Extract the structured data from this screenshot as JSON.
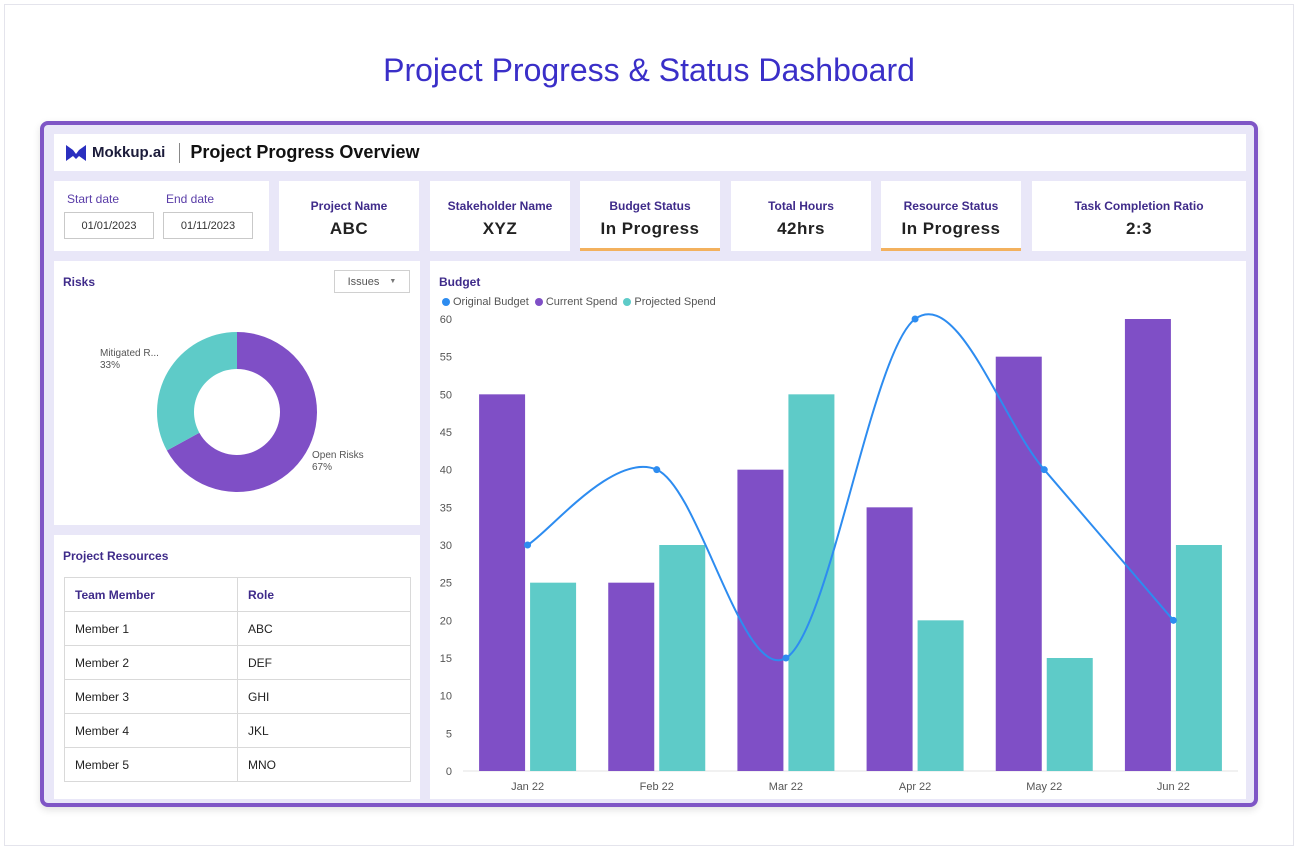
{
  "page": {
    "title": "Project Progress & Status Dashboard"
  },
  "header": {
    "logo_text": "Mokkup.ai",
    "title": "Project Progress Overview",
    "logo_icon": "mokkup-logo-icon"
  },
  "dates": {
    "start": {
      "label": "Start date",
      "value": "01/01/2023"
    },
    "end": {
      "label": "End date",
      "value": "01/11/2023"
    }
  },
  "kpis": [
    {
      "label": "Project Name",
      "value": "ABC"
    },
    {
      "label": "Stakeholder Name",
      "value": "XYZ"
    },
    {
      "label": "Budget Status",
      "value": "In Progress"
    },
    {
      "label": "Total Hours",
      "value": "42hrs"
    },
    {
      "label": "Resource Status",
      "value": "In Progress"
    },
    {
      "label": "Task Completion Ratio",
      "value": "2:3"
    }
  ],
  "risks": {
    "title": "Risks",
    "filter": {
      "selected": "Issues"
    },
    "slices": [
      {
        "name": "Mitigated R...",
        "pct_label": "33%",
        "value": 33,
        "color": "#5ecbc8"
      },
      {
        "name": "Open Risks",
        "pct_label": "67%",
        "value": 67,
        "color": "#7f4fc6"
      }
    ]
  },
  "resources": {
    "title": "Project Resources",
    "columns": [
      "Team Member",
      "Role"
    ],
    "rows": [
      [
        "Member 1",
        "ABC"
      ],
      [
        "Member 2",
        "DEF"
      ],
      [
        "Member 3",
        "GHI"
      ],
      [
        "Member 4",
        "JKL"
      ],
      [
        "Member 5",
        "MNO"
      ]
    ]
  },
  "budget": {
    "title": "Budget"
  },
  "chart_data": [
    {
      "type": "pie",
      "title": "Risks",
      "labels": [
        "Mitigated R...",
        "Open Risks"
      ],
      "values": [
        33,
        67
      ],
      "colors": [
        "#5ecbc8",
        "#7f4fc6"
      ],
      "donut": true
    },
    {
      "type": "bar",
      "title": "Budget",
      "categories": [
        "Jan 22",
        "Feb 22",
        "Mar 22",
        "Apr 22",
        "May 22",
        "Jun 22"
      ],
      "series": [
        {
          "name": "Original Budget",
          "type": "line",
          "smooth": true,
          "color": "#2d8cf0",
          "values": [
            30,
            40,
            15,
            60,
            40,
            20
          ]
        },
        {
          "name": "Current Spend",
          "type": "bar",
          "color": "#7f4fc6",
          "values": [
            50,
            25,
            40,
            35,
            55,
            60
          ]
        },
        {
          "name": "Projected Spend",
          "type": "bar",
          "color": "#5ecbc8",
          "values": [
            25,
            30,
            50,
            20,
            15,
            30
          ]
        }
      ],
      "ylim": [
        0,
        60
      ],
      "yticks": [
        0,
        5,
        10,
        15,
        20,
        25,
        30,
        35,
        40,
        45,
        50,
        55,
        60
      ],
      "legend": "top-left",
      "grid": false
    }
  ]
}
